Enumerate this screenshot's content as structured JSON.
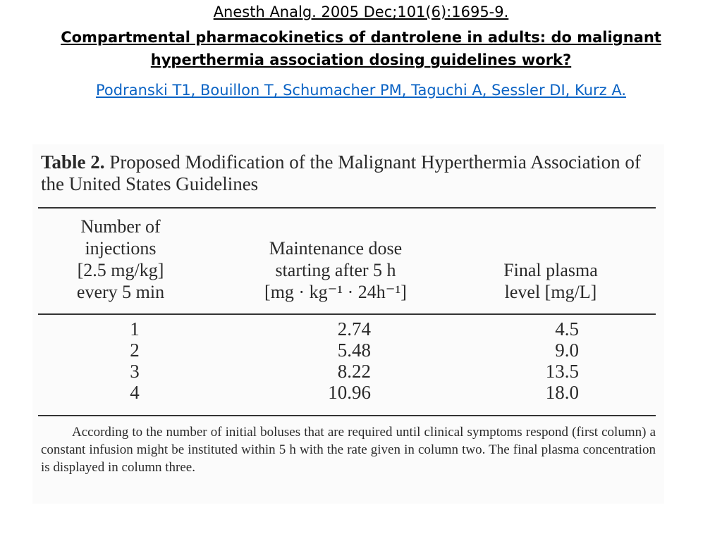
{
  "header": {
    "citation": "Anesth Analg. 2005 Dec;101(6):1695-9.",
    "title": "Compartmental pharmacokinetics of dantrolene in adults: do malignant hyperthermia association dosing guidelines work?",
    "authors": "Podranski T1, Bouillon T, Schumacher PM, Taguchi A, Sessler DI, Kurz A."
  },
  "table": {
    "caption_label": "Table 2.",
    "caption_text": "Proposed Modification of the Malignant Hyperthermia Association of the United States Guidelines",
    "columns": [
      {
        "lines": [
          "Number of",
          "injections",
          "[2.5 mg/kg]",
          "every 5 min"
        ]
      },
      {
        "lines": [
          "Maintenance dose",
          "starting after 5 h",
          "[mg · kg⁻¹ · 24h⁻¹]"
        ]
      },
      {
        "lines": [
          "Final plasma",
          "level [mg/L]"
        ]
      }
    ],
    "rows": [
      [
        "1",
        "2.74",
        "4.5"
      ],
      [
        "2",
        "5.48",
        "9.0"
      ],
      [
        "3",
        "8.22",
        "13.5"
      ],
      [
        "4",
        "10.96",
        "18.0"
      ]
    ],
    "footnote": "According to the number of initial boluses that are required until clinical symptoms respond (first column) a constant infusion might be instituted within 5 h with the rate given in column two. The final plasma concentration is displayed in column three."
  }
}
